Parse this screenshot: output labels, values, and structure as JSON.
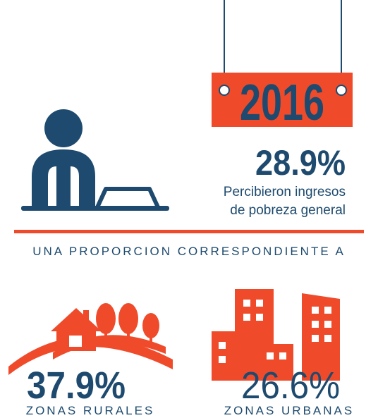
{
  "header": {
    "year": "2016",
    "stat": "28.9%",
    "description": [
      "Percibieron ingresos",
      "de pobreza general"
    ]
  },
  "divider": "UNA PROPORCION CORRESPONDIENTE A",
  "zones": [
    {
      "value": "37.9%",
      "label": "ZONAS RURALES"
    },
    {
      "value": "26.6%",
      "label": "ZONAS URBANAS"
    }
  ]
}
